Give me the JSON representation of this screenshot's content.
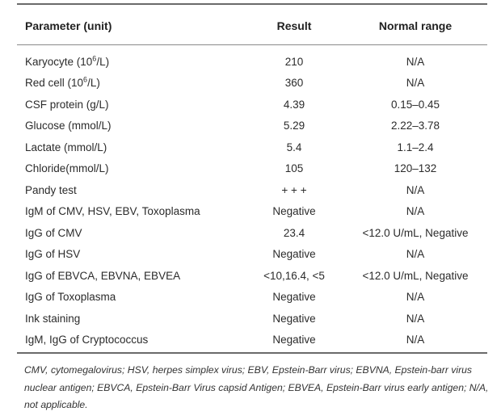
{
  "table": {
    "headers": {
      "parameter": "Parameter (unit)",
      "result": "Result",
      "range": "Normal range"
    },
    "rows": [
      {
        "param_pre": "Karyocyte (10",
        "param_sup": "6",
        "param_post": "/L)",
        "result": "210",
        "range": "N/A"
      },
      {
        "param_pre": "Red cell (10",
        "param_sup": "6",
        "param_post": "/L)",
        "result": "360",
        "range": "N/A"
      },
      {
        "param": "CSF protein (g/L)",
        "result": "4.39",
        "range": "0.15–0.45"
      },
      {
        "param": "Glucose (mmol/L)",
        "result": "5.29",
        "range": "2.22–3.78"
      },
      {
        "param": "Lactate (mmol/L)",
        "result": "5.4",
        "range": "1.1–2.4"
      },
      {
        "param": "Chloride(mmol/L)",
        "result": "105",
        "range": "120–132"
      },
      {
        "param": "Pandy test",
        "result": "+ + +",
        "range": "N/A"
      },
      {
        "param": "IgM of CMV, HSV, EBV, Toxoplasma",
        "result": "Negative",
        "range": "N/A"
      },
      {
        "param": "IgG of CMV",
        "result": "23.4",
        "range": "<12.0 U/mL, Negative"
      },
      {
        "param": "IgG of HSV",
        "result": "Negative",
        "range": "N/A"
      },
      {
        "param": "IgG of EBVCA, EBVNA, EBVEA",
        "result": "<10,16.4, <5",
        "range": "<12.0 U/mL, Negative"
      },
      {
        "param": "IgG of Toxoplasma",
        "result": "Negative",
        "range": "N/A"
      },
      {
        "param": "Ink staining",
        "result": "Negative",
        "range": "N/A"
      },
      {
        "param": "IgM, IgG of Cryptococcus",
        "result": "Negative",
        "range": "N/A"
      }
    ]
  },
  "footnote": "CMV, cytomegalovirus; HSV, herpes simplex virus; EBV, Epstein-Barr virus; EBVNA, Epstein-barr virus nuclear antigen; EBVCA, Epstein-Barr Virus capsid Antigen; EBVEA, Epstein-Barr virus early antigen; N/A, not applicable."
}
